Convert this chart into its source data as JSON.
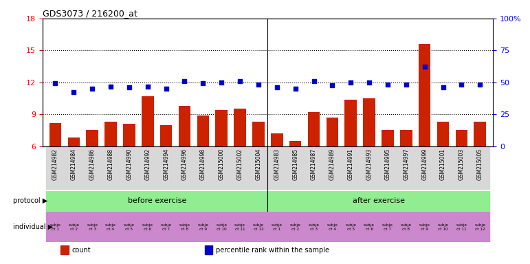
{
  "title": "GDS3073 / 216200_at",
  "gsm_ids": [
    "GSM214982",
    "GSM214984",
    "GSM214986",
    "GSM214988",
    "GSM214990",
    "GSM214992",
    "GSM214994",
    "GSM214996",
    "GSM214998",
    "GSM215000",
    "GSM215002",
    "GSM215004",
    "GSM214983",
    "GSM214985",
    "GSM214987",
    "GSM214989",
    "GSM214991",
    "GSM214993",
    "GSM214995",
    "GSM214997",
    "GSM214999",
    "GSM215001",
    "GSM215003",
    "GSM215005"
  ],
  "bar_values": [
    8.2,
    6.8,
    7.5,
    8.3,
    8.1,
    10.7,
    8.0,
    9.8,
    8.9,
    9.4,
    9.5,
    8.3,
    7.2,
    6.5,
    9.2,
    8.7,
    10.4,
    10.5,
    7.5,
    7.5,
    15.6,
    8.3,
    7.5,
    8.3
  ],
  "dot_values": [
    11.9,
    11.1,
    11.4,
    11.6,
    11.5,
    11.6,
    11.4,
    12.1,
    11.9,
    12.0,
    12.1,
    11.8,
    11.5,
    11.4,
    12.1,
    11.7,
    12.0,
    12.0,
    11.8,
    11.8,
    13.5,
    11.5,
    11.8,
    11.8
  ],
  "bar_color": "#cc2200",
  "dot_color": "#0000cc",
  "ylim_left": [
    6,
    18
  ],
  "ylim_right": [
    0,
    100
  ],
  "yticks_left": [
    6,
    9,
    12,
    15,
    18
  ],
  "yticks_right": [
    0,
    25,
    50,
    75,
    100
  ],
  "ytick_labels_right": [
    "0",
    "25",
    "50",
    "75",
    "100%"
  ],
  "hlines": [
    9,
    12,
    15
  ],
  "before_exercise_count": 12,
  "after_exercise_count": 12,
  "protocol_label": "protocol",
  "individual_label": "individual",
  "before_text": "before exercise",
  "after_text": "after exercise",
  "protocol_color": "#90ee90",
  "individual_color_before": [
    "#e8e8e8",
    "#e8e8e8",
    "#e8e8e8",
    "#e8e8e8",
    "#e8e8e8",
    "#e8e8e8",
    "#e8e8e8",
    "#e8e8e8",
    "#dda0dd",
    "#e8e8e8",
    "#dda0dd",
    "#dda0dd"
  ],
  "individual_color_after": [
    "#e8e8e8",
    "#e8e8e8",
    "#e8e8e8",
    "#e8e8e8",
    "#e8e8e8",
    "#e8e8e8",
    "#e8e8e8",
    "#e8e8e8",
    "#e8e8e8",
    "#e8e8e8",
    "#e8e8e8",
    "#e8e8e8"
  ],
  "individual_labels_before": [
    "subje\nct 1",
    "subje\nct 2",
    "subje\nct 3",
    "subje\nct 4",
    "subje\nct 5",
    "subje\nct 6",
    "subje\nct 7",
    "subje\nct 8",
    "subje\nct 9",
    "subje\nct 10",
    "subje\nct 11",
    "subje\nct 12"
  ],
  "individual_labels_after": [
    "subje\nct 1",
    "subje\nct 2",
    "subje\nct 3",
    "subje\nct 4",
    "subje\nct 5",
    "subje\nct 6",
    "subje\nct 7",
    "subje\nct 8",
    "subje\nct 9",
    "subje\nct 10",
    "subje\nct 11",
    "subje\nct 12"
  ],
  "legend_items": [
    "count",
    "percentile rank within the sample"
  ],
  "legend_colors": [
    "#cc2200",
    "#0000cc"
  ],
  "bg_color": "#ffffff",
  "label_bg_color": "#d8d8d8"
}
